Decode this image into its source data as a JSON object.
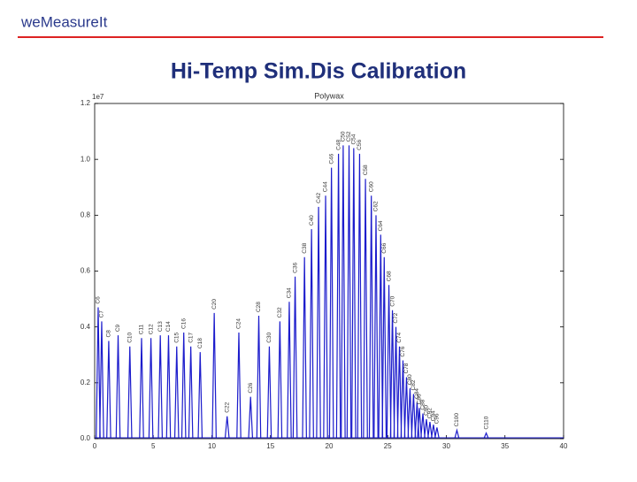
{
  "header": {
    "logo": "weMeasureIt",
    "title": "Hi-Temp Sim.Dis Calibration"
  },
  "chart_data": {
    "type": "chromatogram",
    "title": "Polywax",
    "y_multiplier": "1e7",
    "color": "#1c1ccc",
    "xlim": [
      0,
      40
    ],
    "ylim": [
      0,
      1.2
    ],
    "xticks": [
      0,
      5,
      10,
      15,
      20,
      25,
      30,
      35,
      40
    ],
    "yticks": [
      {
        "value": 0,
        "label": "0.0"
      },
      0.2,
      0.4,
      0.6,
      0.8,
      {
        "value": 1,
        "label": "1.0"
      },
      1.2
    ],
    "labels": [
      "C6",
      "C7",
      "C8",
      "C9",
      "C10",
      "C11",
      "C12",
      "C13",
      "C14",
      "C15",
      "C16",
      "C17",
      "C18",
      "C20",
      "C22",
      "C24",
      "C26",
      "C28",
      "C30",
      "C32",
      "C34",
      "C36",
      "C38",
      "C40",
      "C42",
      "C44",
      "C46",
      "C48",
      "C50",
      "C52",
      "C54",
      "C56",
      "C58",
      "C60",
      "C62",
      "C64",
      "C66",
      "C68",
      "C70",
      "C72",
      "C74",
      "C76",
      "C78",
      "C80",
      "C82",
      "C84",
      "C86",
      "C88",
      "C90",
      "C92",
      "C94",
      "C96",
      "C100",
      "C110"
    ],
    "x": [
      0.3,
      0.6,
      1.2,
      2.0,
      3.0,
      4.0,
      4.8,
      5.6,
      6.3,
      7.0,
      7.6,
      8.2,
      9.0,
      10.2,
      11.3,
      12.3,
      13.3,
      14.0,
      14.9,
      15.8,
      16.6,
      17.1,
      17.9,
      18.5,
      19.1,
      19.7,
      20.2,
      20.8,
      21.2,
      21.7,
      22.1,
      22.6,
      23.1,
      23.6,
      24.0,
      24.4,
      24.7,
      25.1,
      25.4,
      25.7,
      26.0,
      26.3,
      26.6,
      26.9,
      27.2,
      27.5,
      27.7,
      28.0,
      28.3,
      28.6,
      28.9,
      29.2,
      30.9,
      33.4
    ],
    "values": [
      0.47,
      0.42,
      0.35,
      0.37,
      0.33,
      0.36,
      0.36,
      0.37,
      0.37,
      0.33,
      0.38,
      0.33,
      0.31,
      0.45,
      0.08,
      0.38,
      0.15,
      0.44,
      0.33,
      0.42,
      0.49,
      0.58,
      0.65,
      0.75,
      0.83,
      0.87,
      0.97,
      1.02,
      1.05,
      1.05,
      1.04,
      1.02,
      0.93,
      0.87,
      0.8,
      0.73,
      0.65,
      0.55,
      0.46,
      0.4,
      0.33,
      0.28,
      0.22,
      0.18,
      0.16,
      0.13,
      0.11,
      0.09,
      0.07,
      0.06,
      0.05,
      0.04,
      0.03,
      0.02
    ]
  }
}
